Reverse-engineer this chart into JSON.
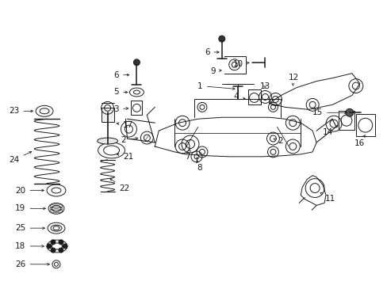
{
  "bg_color": "#ffffff",
  "line_color": "#1a1a1a",
  "fig_width": 4.89,
  "fig_height": 3.6,
  "dpi": 100,
  "font_size": 7.5,
  "lw": 0.7,
  "labels": [
    [
      "26",
      18,
      25,
      62,
      25,
      "->"
    ],
    [
      "18",
      18,
      48,
      60,
      48,
      "->"
    ],
    [
      "25",
      18,
      71,
      60,
      71,
      "->"
    ],
    [
      "19",
      18,
      96,
      58,
      96,
      "->"
    ],
    [
      "20",
      18,
      119,
      58,
      119,
      "->"
    ],
    [
      "24",
      10,
      167,
      50,
      155,
      "->"
    ],
    [
      "23",
      10,
      218,
      50,
      220,
      "->"
    ],
    [
      "22",
      175,
      125,
      140,
      132,
      "<-"
    ],
    [
      "21",
      178,
      163,
      143,
      166,
      "<-"
    ],
    [
      "17",
      175,
      205,
      143,
      207,
      "<-"
    ],
    [
      "11",
      415,
      108,
      395,
      120,
      "<-"
    ],
    [
      "8",
      242,
      152,
      245,
      168,
      "v"
    ],
    [
      "7",
      235,
      163,
      238,
      174,
      "v"
    ],
    [
      "2",
      155,
      183,
      178,
      186,
      "->"
    ],
    [
      "2",
      362,
      183,
      340,
      186,
      "<-"
    ],
    [
      "3",
      148,
      220,
      170,
      224,
      "->"
    ],
    [
      "5",
      148,
      244,
      170,
      248,
      "->"
    ],
    [
      "6",
      148,
      264,
      172,
      264,
      "->"
    ],
    [
      "1",
      255,
      248,
      255,
      232,
      "^"
    ],
    [
      "4",
      300,
      238,
      318,
      234,
      "<-"
    ],
    [
      "9",
      270,
      268,
      290,
      264,
      "->"
    ],
    [
      "10",
      305,
      278,
      323,
      272,
      "<-"
    ],
    [
      "6",
      262,
      296,
      270,
      285,
      "->"
    ],
    [
      "13",
      327,
      248,
      332,
      238,
      "^"
    ],
    [
      "12",
      363,
      258,
      368,
      244,
      "^"
    ],
    [
      "14",
      410,
      192,
      418,
      202,
      "v"
    ],
    [
      "15",
      410,
      212,
      430,
      218,
      "<-"
    ],
    [
      "16",
      440,
      178,
      450,
      192,
      "v"
    ]
  ]
}
